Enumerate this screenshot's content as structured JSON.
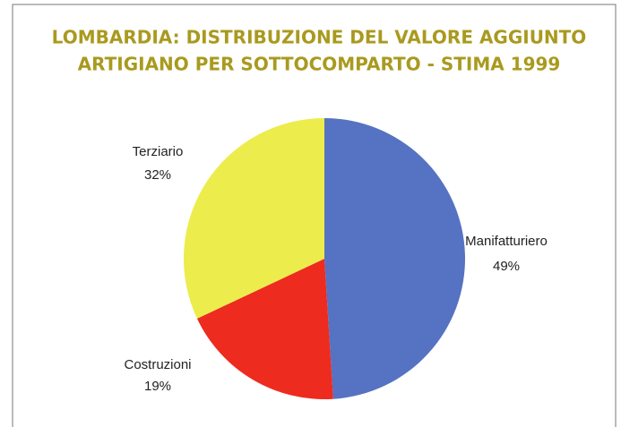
{
  "chart_data": {
    "type": "pie",
    "title": [
      "LOMBARDIA: DISTRIBUZIONE DEL VALORE AGGIUNTO",
      "ARTIGIANO PER SOTTOCOMPARTO - STIMA 1999"
    ],
    "categories": [
      "Manifatturiero",
      "Costruzioni",
      "Terziario"
    ],
    "values": [
      49,
      19,
      32
    ],
    "value_labels": [
      "49%",
      "19%",
      "32%"
    ],
    "colors": [
      "#5672c2",
      "#ee2b1f",
      "#ecec4c"
    ]
  }
}
